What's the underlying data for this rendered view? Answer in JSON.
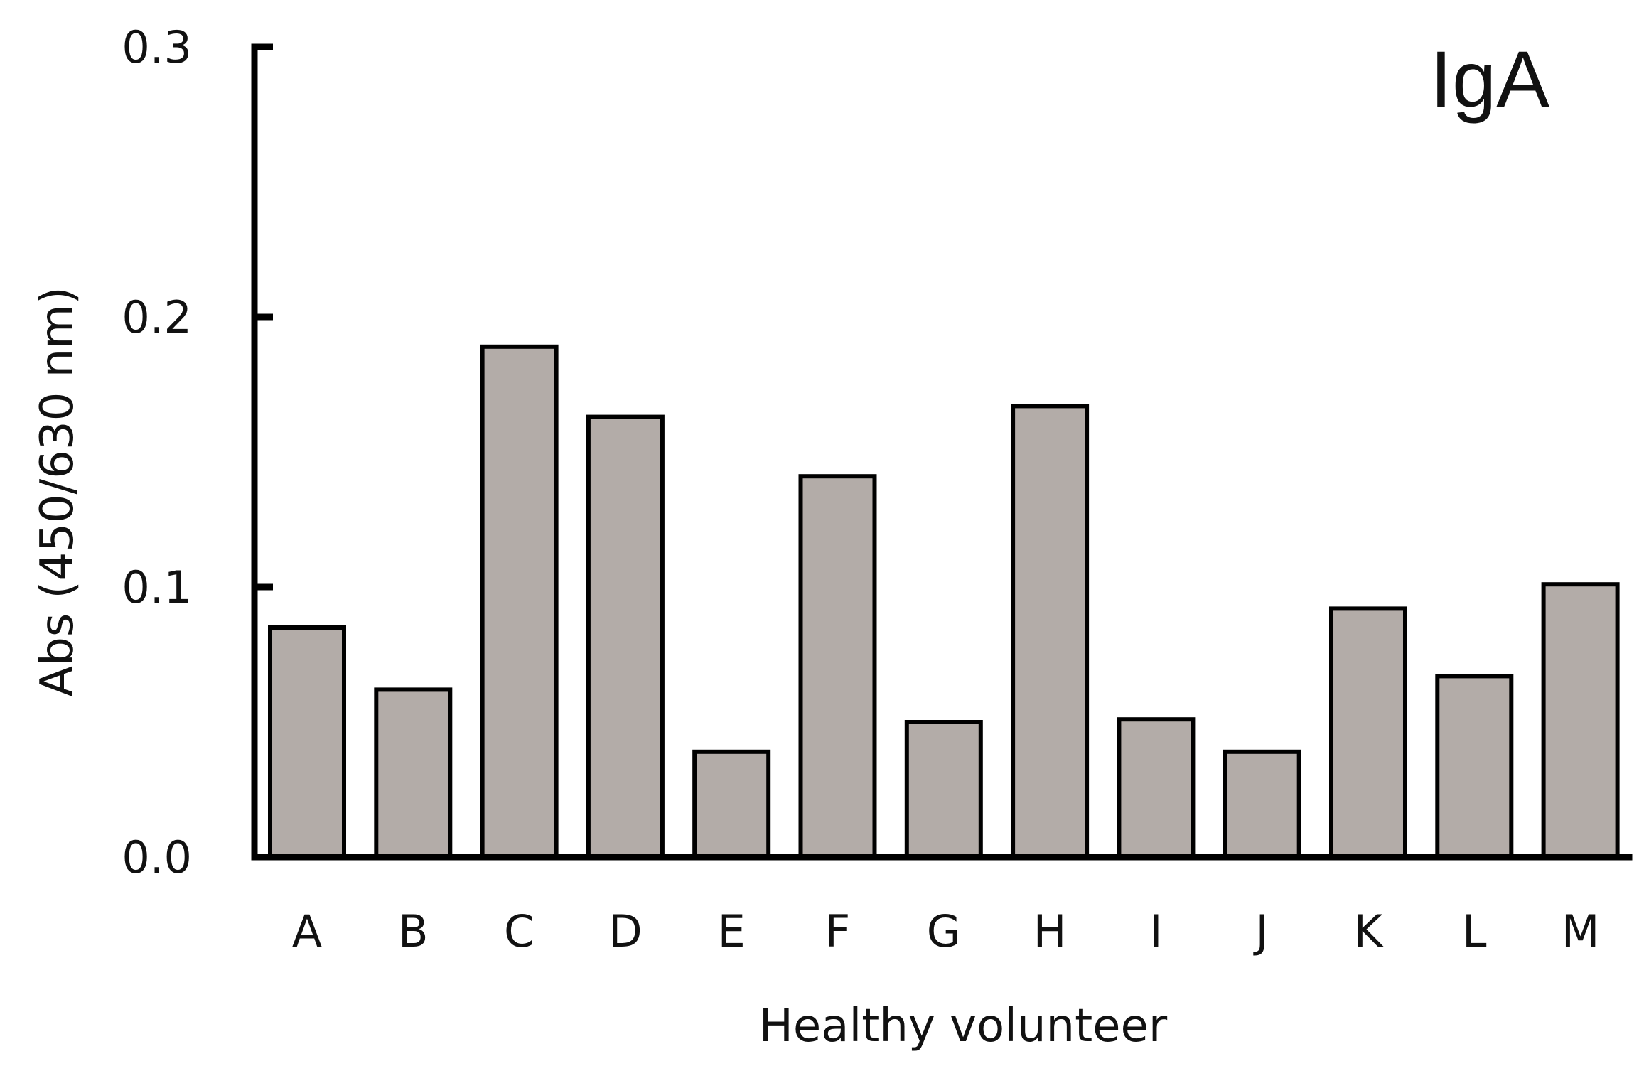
{
  "chart_data": {
    "type": "bar",
    "title": "IgA",
    "xlabel": "Healthy volunteer",
    "ylabel": "Abs (450/630 nm)",
    "categories": [
      "A",
      "B",
      "C",
      "D",
      "E",
      "F",
      "G",
      "H",
      "I",
      "J",
      "K",
      "L",
      "M"
    ],
    "values": [
      0.085,
      0.062,
      0.189,
      0.163,
      0.039,
      0.141,
      0.05,
      0.167,
      0.051,
      0.039,
      0.092,
      0.067,
      0.101
    ],
    "ylim": [
      0,
      0.3
    ],
    "yticks": [
      "0.0",
      "0.1",
      "0.2",
      "0.3"
    ],
    "ytick_values": [
      0,
      0.1,
      0.2,
      0.3
    ],
    "grid": false,
    "legend": "none",
    "bar_color": "#b3aca8",
    "edge_color": "#000000"
  }
}
